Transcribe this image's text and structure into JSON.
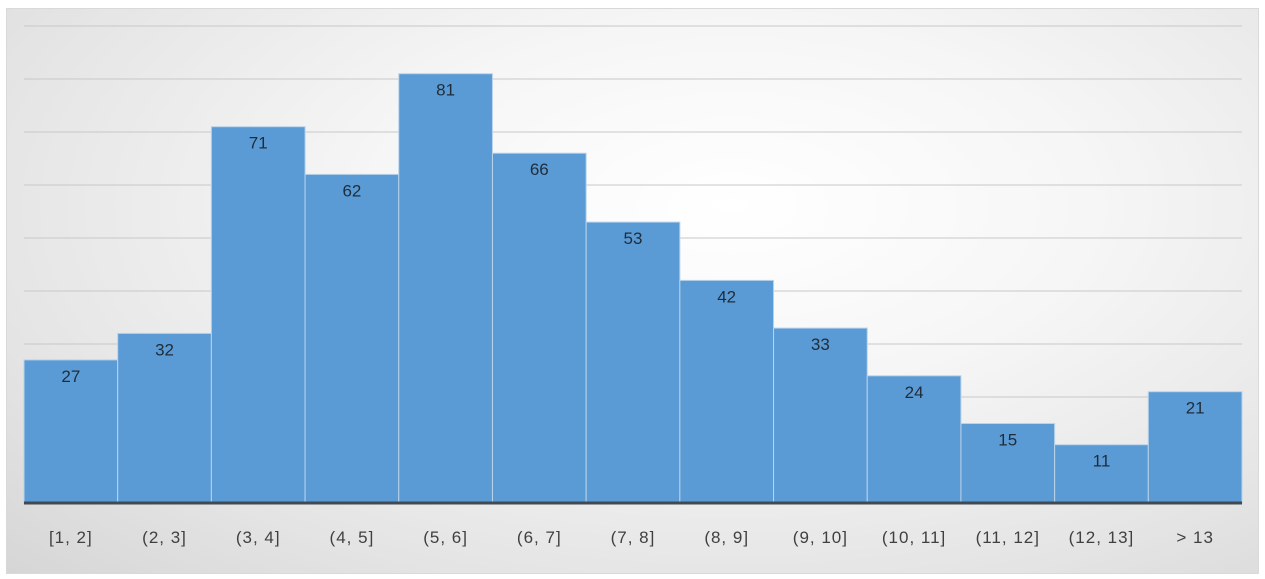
{
  "chart_data": {
    "type": "bar",
    "title": "",
    "xlabel": "",
    "ylabel": "",
    "categories": [
      "[1, 2]",
      "(2, 3]",
      "(3, 4]",
      "(4, 5]",
      "(5, 6]",
      "(6, 7]",
      "(7, 8]",
      "(8, 9]",
      "(9, 10]",
      "(10, 11]",
      "(11, 12]",
      "(12, 13]",
      "> 13"
    ],
    "values": [
      27,
      32,
      71,
      62,
      81,
      66,
      53,
      42,
      33,
      24,
      15,
      11,
      21
    ],
    "ylim": [
      0,
      90
    ],
    "grid": true,
    "legend": "none",
    "bar_color": "#5b9bd5"
  }
}
